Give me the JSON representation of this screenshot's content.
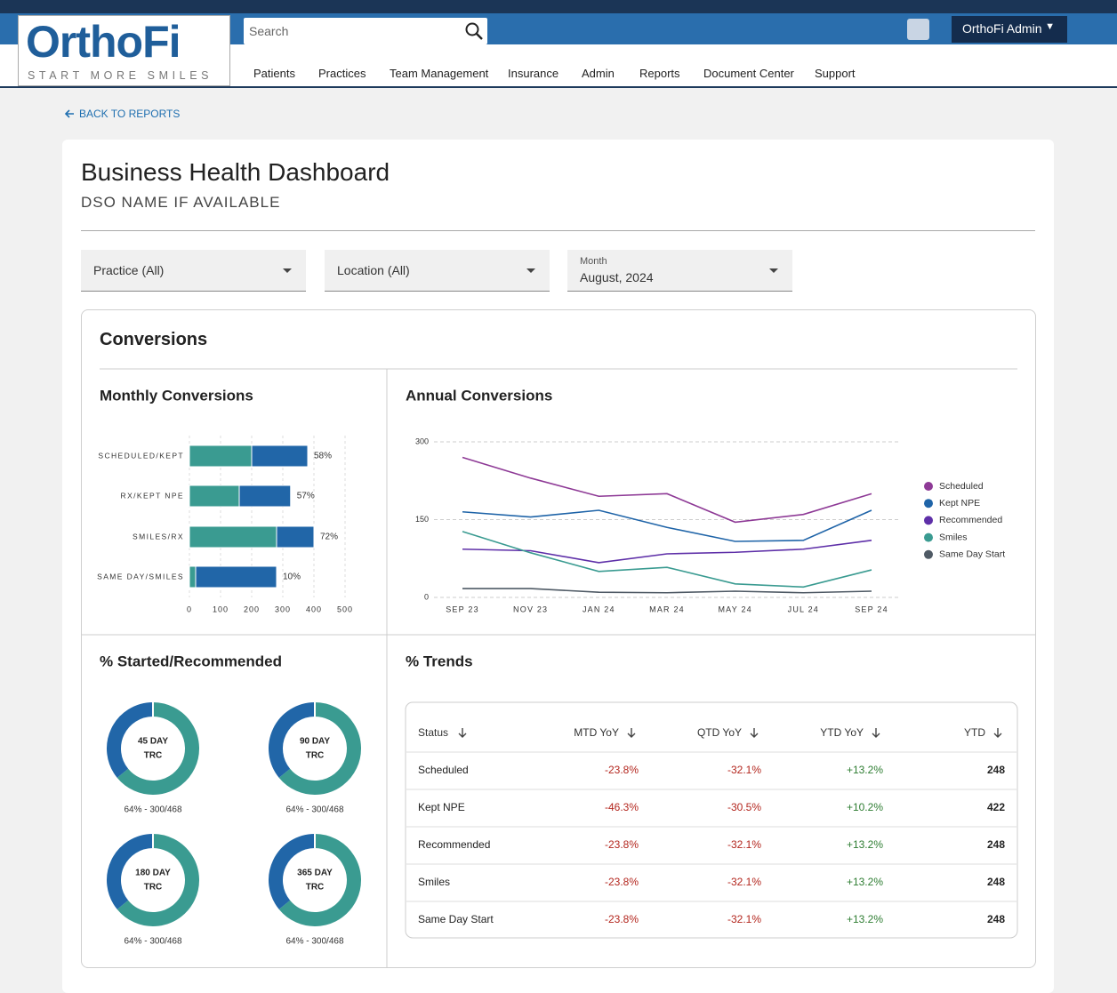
{
  "header": {
    "logo": "OrthoFi",
    "tagline": "START MORE SMILES",
    "search_placeholder": "Search",
    "user": "OrthoFi Admin",
    "nav": [
      "Patients",
      "Practices",
      "Team Management",
      "Insurance",
      "Admin",
      "Reports",
      "Document Center",
      "Support"
    ]
  },
  "back_link": "BACK TO REPORTS",
  "page": {
    "title": "Business Health Dashboard",
    "subtitle": "DSO NAME IF AVAILABLE"
  },
  "filters": [
    {
      "value": "Practice (All)"
    },
    {
      "value": "Location (All)"
    },
    {
      "label": "Month",
      "value": "August, 2024"
    }
  ],
  "section_title": "Conversions",
  "chart_data": [
    {
      "type": "hbar_stacked",
      "title": "Monthly Conversions",
      "categories": [
        "SCHEDULED/KEPT",
        "RX/KEPT NPE",
        "SMILES/RX",
        "SAME DAY/SMILES"
      ],
      "series": [
        {
          "color": "#3a9b91",
          "values": [
            200,
            160,
            280,
            20
          ]
        },
        {
          "color": "#2166a8",
          "values": [
            180,
            165,
            120,
            260
          ]
        }
      ],
      "percent_labels": [
        "58%",
        "57%",
        "72%",
        "10%"
      ],
      "xlim": [
        0,
        500
      ],
      "xticks": [
        0,
        100,
        200,
        300,
        400,
        500
      ],
      "grid": true
    },
    {
      "type": "line",
      "title": "Annual Conversions",
      "categories": [
        "SEP 23",
        "NOV 23",
        "JAN 24",
        "MAR 24",
        "MAY 24",
        "JUL 24",
        "SEP 24"
      ],
      "series": [
        {
          "name": "Scheduled",
          "color": "#8e3a96",
          "values": [
            270,
            230,
            195,
            200,
            145,
            160,
            200
          ]
        },
        {
          "name": "Kept NPE",
          "color": "#1f64a8",
          "values": [
            165,
            155,
            168,
            135,
            108,
            110,
            168
          ]
        },
        {
          "name": "Recommended",
          "color": "#5e2fa8",
          "values": [
            93,
            90,
            67,
            84,
            87,
            93,
            110
          ]
        },
        {
          "name": "Smiles",
          "color": "#3a9b91",
          "values": [
            127,
            86,
            50,
            58,
            26,
            20,
            53
          ]
        },
        {
          "name": "Same Day Start",
          "color": "#4f5a65",
          "values": [
            17,
            17,
            10,
            9,
            12,
            9,
            12
          ]
        }
      ],
      "ylim": [
        0,
        300
      ],
      "yticks": [
        0,
        150,
        300
      ],
      "grid": true,
      "legend": "right"
    },
    {
      "type": "donut_group",
      "title": "% Started/Recommended",
      "colors": [
        "#3a9b91",
        "#2166a8"
      ],
      "donuts": [
        {
          "label": [
            "45 DAY",
            "TRC"
          ],
          "caption": "64% - 300/468",
          "values": [
            300,
            168
          ]
        },
        {
          "label": [
            "90 DAY",
            "TRC"
          ],
          "caption": "64% - 300/468",
          "values": [
            300,
            168
          ]
        },
        {
          "label": [
            "180 DAY",
            "TRC"
          ],
          "caption": "64% - 300/468",
          "values": [
            300,
            168
          ]
        },
        {
          "label": [
            "365 DAY",
            "TRC"
          ],
          "caption": "64% - 300/468",
          "values": [
            300,
            168
          ]
        }
      ]
    }
  ],
  "trends": {
    "title": "% Trends",
    "columns": [
      "Status",
      "MTD YoY",
      "QTD YoY",
      "YTD YoY",
      "YTD"
    ],
    "rows": [
      [
        "Scheduled",
        "-23.8%",
        "-32.1%",
        "+13.2%",
        "248"
      ],
      [
        "Kept NPE",
        "-46.3%",
        "-30.5%",
        "+10.2%",
        "422"
      ],
      [
        "Recommended",
        "-23.8%",
        "-32.1%",
        "+13.2%",
        "248"
      ],
      [
        "Smiles",
        "-23.8%",
        "-32.1%",
        "+13.2%",
        "248"
      ],
      [
        "Same Day Start",
        "-23.8%",
        "-32.1%",
        "+13.2%",
        "248"
      ]
    ]
  }
}
